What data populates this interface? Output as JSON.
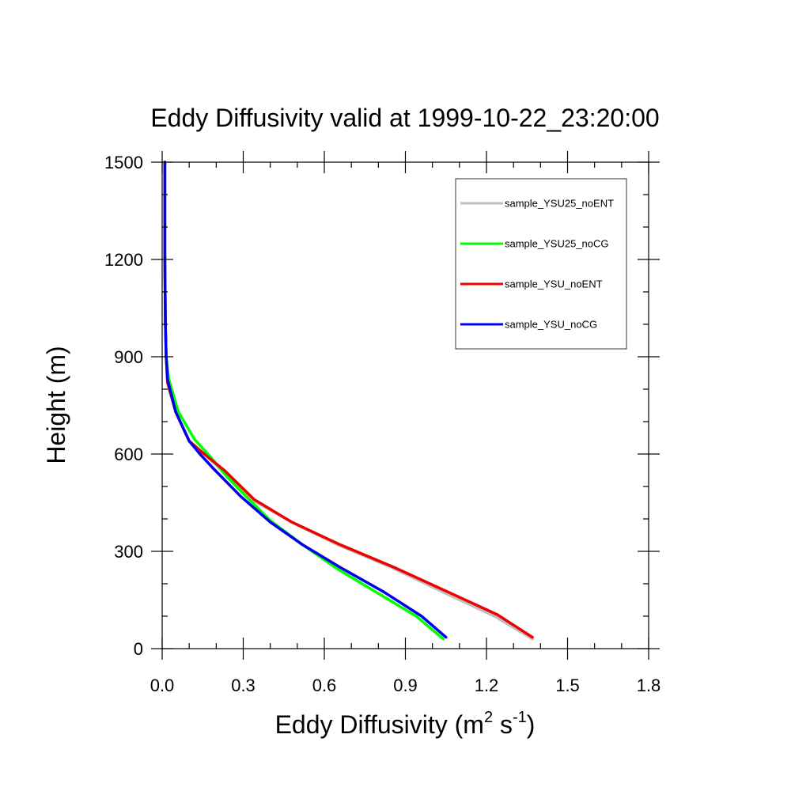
{
  "chart_data": {
    "type": "line",
    "title": "Eddy Diffusivity valid at 1999-10-22_23:20:00",
    "xlabel": {
      "base": "Eddy Diffusivity (m",
      "sup1": "2",
      "mid": " s",
      "sup2": "-1",
      "end": ")"
    },
    "ylabel": "Height (m)",
    "xlim": [
      0,
      1.8
    ],
    "ylim": [
      0,
      1500
    ],
    "xticks": [
      0.0,
      0.3,
      0.6,
      0.9,
      1.2,
      1.5,
      1.8
    ],
    "xtick_labels": [
      "0.0",
      "0.3",
      "0.6",
      "0.9",
      "1.2",
      "1.5",
      "1.8"
    ],
    "yticks": [
      0,
      300,
      600,
      900,
      1200,
      1500
    ],
    "ytick_labels": [
      "0",
      "300",
      "600",
      "900",
      "1200",
      "1500"
    ],
    "legend_placement": "top-right",
    "grid": false,
    "series": [
      {
        "name": "sample_YSU25_noENT",
        "color": "#bebebe",
        "points": [
          [
            1.37,
            30
          ],
          [
            1.23,
            100
          ],
          [
            1.05,
            170
          ],
          [
            0.85,
            250
          ],
          [
            0.65,
            320
          ],
          [
            0.48,
            390
          ],
          [
            0.33,
            460
          ],
          [
            0.22,
            550
          ],
          [
            0.17,
            590
          ],
          [
            0.1,
            640
          ],
          [
            0.05,
            730
          ],
          [
            0.02,
            820
          ],
          [
            0.015,
            900
          ],
          [
            0.012,
            1000
          ],
          [
            0.01,
            1200
          ],
          [
            0.01,
            1500
          ]
        ]
      },
      {
        "name": "sample_YSU25_noCG",
        "color": "#00ff00",
        "points": [
          [
            1.04,
            30
          ],
          [
            0.94,
            100
          ],
          [
            0.8,
            170
          ],
          [
            0.65,
            245
          ],
          [
            0.52,
            320
          ],
          [
            0.4,
            395
          ],
          [
            0.31,
            470
          ],
          [
            0.24,
            530
          ],
          [
            0.18,
            590
          ],
          [
            0.12,
            645
          ],
          [
            0.06,
            730
          ],
          [
            0.025,
            830
          ],
          [
            0.015,
            900
          ],
          [
            0.012,
            1000
          ],
          [
            0.01,
            1200
          ],
          [
            0.01,
            1500
          ]
        ]
      },
      {
        "name": "sample_YSU_noENT",
        "color": "#ee0000",
        "points": [
          [
            1.37,
            35
          ],
          [
            1.24,
            105
          ],
          [
            1.07,
            170
          ],
          [
            0.86,
            250
          ],
          [
            0.66,
            320
          ],
          [
            0.48,
            390
          ],
          [
            0.34,
            460
          ],
          [
            0.23,
            550
          ],
          [
            0.17,
            590
          ],
          [
            0.1,
            640
          ],
          [
            0.05,
            730
          ],
          [
            0.02,
            820
          ],
          [
            0.015,
            900
          ],
          [
            0.012,
            1000
          ],
          [
            0.01,
            1200
          ],
          [
            0.01,
            1500
          ]
        ]
      },
      {
        "name": "sample_YSU_noCG",
        "color": "#0000ee",
        "points": [
          [
            1.05,
            35
          ],
          [
            0.96,
            100
          ],
          [
            0.82,
            175
          ],
          [
            0.66,
            250
          ],
          [
            0.52,
            320
          ],
          [
            0.4,
            390
          ],
          [
            0.29,
            470
          ],
          [
            0.19,
            555
          ],
          [
            0.14,
            600
          ],
          [
            0.1,
            640
          ],
          [
            0.05,
            730
          ],
          [
            0.02,
            830
          ],
          [
            0.015,
            900
          ],
          [
            0.012,
            1000
          ],
          [
            0.01,
            1200
          ],
          [
            0.01,
            1500
          ]
        ]
      }
    ]
  }
}
